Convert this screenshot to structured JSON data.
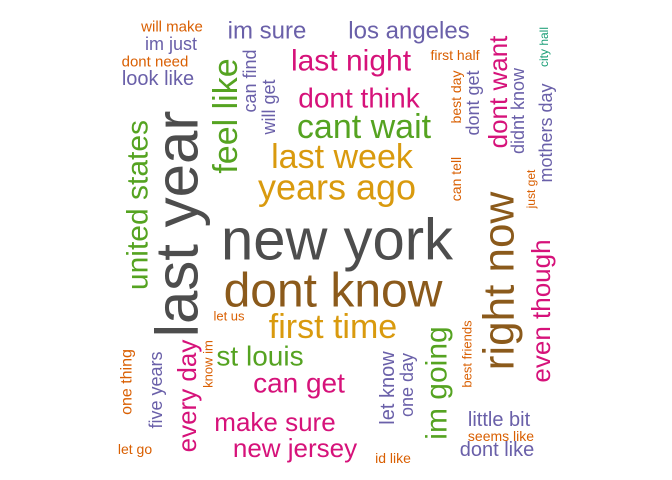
{
  "palette": {
    "gray": "#4D4D4D",
    "brown": "#8B5A1B",
    "gold": "#D99A0E",
    "green": "#55A321",
    "magenta": "#D6127A",
    "purple": "#6A60A9",
    "orange": "#D95F02",
    "teal": "#1B9E77"
  },
  "words": [
    {
      "text": "new york",
      "color": "gray"
    },
    {
      "text": "last year",
      "color": "gray"
    },
    {
      "text": "dont know",
      "color": "brown"
    },
    {
      "text": "right now",
      "color": "brown"
    },
    {
      "text": "years ago",
      "color": "gold"
    },
    {
      "text": "last week",
      "color": "gold"
    },
    {
      "text": "first time",
      "color": "gold"
    },
    {
      "text": "feel like",
      "color": "green"
    },
    {
      "text": "cant wait",
      "color": "green"
    },
    {
      "text": "united states",
      "color": "green"
    },
    {
      "text": "st louis",
      "color": "green"
    },
    {
      "text": "im going",
      "color": "green"
    },
    {
      "text": "last night",
      "color": "magenta"
    },
    {
      "text": "dont think",
      "color": "magenta"
    },
    {
      "text": "dont want",
      "color": "magenta"
    },
    {
      "text": "even though",
      "color": "magenta"
    },
    {
      "text": "can get",
      "color": "magenta"
    },
    {
      "text": "make sure",
      "color": "magenta"
    },
    {
      "text": "new jersey",
      "color": "magenta"
    },
    {
      "text": "every day",
      "color": "magenta"
    },
    {
      "text": "im sure",
      "color": "purple"
    },
    {
      "text": "los angeles",
      "color": "purple"
    },
    {
      "text": "look like",
      "color": "purple"
    },
    {
      "text": "im just",
      "color": "purple"
    },
    {
      "text": "can find",
      "color": "purple"
    },
    {
      "text": "will get",
      "color": "purple"
    },
    {
      "text": "dont get",
      "color": "purple"
    },
    {
      "text": "didnt know",
      "color": "purple"
    },
    {
      "text": "mothers day",
      "color": "purple"
    },
    {
      "text": "five years",
      "color": "purple"
    },
    {
      "text": "let know",
      "color": "purple"
    },
    {
      "text": "one day",
      "color": "purple"
    },
    {
      "text": "little bit",
      "color": "purple"
    },
    {
      "text": "dont like",
      "color": "purple"
    },
    {
      "text": "will make",
      "color": "orange"
    },
    {
      "text": "dont need",
      "color": "orange"
    },
    {
      "text": "first half",
      "color": "orange"
    },
    {
      "text": "best day",
      "color": "orange"
    },
    {
      "text": "can tell",
      "color": "orange"
    },
    {
      "text": "just get",
      "color": "orange"
    },
    {
      "text": "let us",
      "color": "orange"
    },
    {
      "text": "know im",
      "color": "orange"
    },
    {
      "text": "best friends",
      "color": "orange"
    },
    {
      "text": "one thing",
      "color": "orange"
    },
    {
      "text": "seems like",
      "color": "orange"
    },
    {
      "text": "let go",
      "color": "orange"
    },
    {
      "text": "id like",
      "color": "orange"
    },
    {
      "text": "city hall",
      "color": "teal"
    }
  ]
}
